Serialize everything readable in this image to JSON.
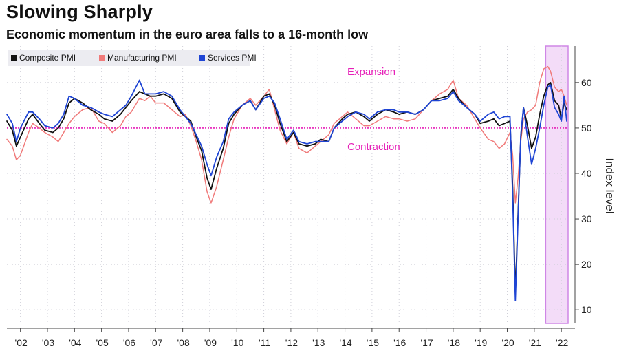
{
  "header": {
    "title": "Slowing Sharply",
    "subtitle": "Economic momentum in the euro area falls to a 16-month low"
  },
  "annotations": {
    "expansion": "Expansion",
    "contraction": "Contraction"
  },
  "colors": {
    "composite": "#111111",
    "manufacturing": "#f07a7a",
    "services": "#1f45d4",
    "threshold": "#e61fb8",
    "highlight_fill": "#f3dcf8",
    "highlight_edge": "#cf86e6",
    "grid": "#cfcfd8"
  },
  "chart_data": {
    "type": "line",
    "ylabel": "Index level",
    "ylim": [
      7,
      68
    ],
    "xlim": [
      2001.5,
      2022.25
    ],
    "yticks": [
      10,
      20,
      30,
      40,
      50,
      60
    ],
    "xticks": [
      "'02",
      "'03",
      "'04",
      "'05",
      "'06",
      "'07",
      "'08",
      "'09",
      "'10",
      "'11",
      "'12",
      "'13",
      "'14",
      "'15",
      "'16",
      "'17",
      "'18",
      "'19",
      "'20",
      "'21",
      "'22"
    ],
    "threshold": 50,
    "highlight_range": [
      2021.42,
      2022.25
    ],
    "grid": true,
    "legend_position": "top-left",
    "series": [
      {
        "name": "Composite PMI",
        "key": "composite",
        "points": [
          [
            2001.5,
            51.5
          ],
          [
            2001.7,
            49.5
          ],
          [
            2001.85,
            46
          ],
          [
            2002.0,
            48
          ],
          [
            2002.3,
            52
          ],
          [
            2002.45,
            53
          ],
          [
            2002.7,
            51
          ],
          [
            2002.9,
            49.5
          ],
          [
            2003.2,
            49
          ],
          [
            2003.4,
            50
          ],
          [
            2003.6,
            52
          ],
          [
            2003.8,
            55.5
          ],
          [
            2004.0,
            56.5
          ],
          [
            2004.3,
            55.5
          ],
          [
            2004.6,
            54
          ],
          [
            2004.9,
            53
          ],
          [
            2005.1,
            52
          ],
          [
            2005.4,
            51.5
          ],
          [
            2005.7,
            53
          ],
          [
            2005.9,
            54.5
          ],
          [
            2006.1,
            56
          ],
          [
            2006.4,
            58
          ],
          [
            2006.6,
            57.5
          ],
          [
            2006.8,
            57
          ],
          [
            2007.0,
            57
          ],
          [
            2007.3,
            57.5
          ],
          [
            2007.6,
            56.5
          ],
          [
            2007.9,
            53.5
          ],
          [
            2008.1,
            52.5
          ],
          [
            2008.3,
            51.5
          ],
          [
            2008.5,
            48
          ],
          [
            2008.7,
            45
          ],
          [
            2008.9,
            39
          ],
          [
            2009.05,
            36.5
          ],
          [
            2009.25,
            41
          ],
          [
            2009.5,
            45.5
          ],
          [
            2009.7,
            51
          ],
          [
            2009.9,
            53
          ],
          [
            2010.2,
            55
          ],
          [
            2010.5,
            56
          ],
          [
            2010.7,
            54
          ],
          [
            2011.0,
            57
          ],
          [
            2011.2,
            57.5
          ],
          [
            2011.4,
            55
          ],
          [
            2011.6,
            51
          ],
          [
            2011.85,
            47
          ],
          [
            2012.1,
            49
          ],
          [
            2012.3,
            46.5
          ],
          [
            2012.6,
            46
          ],
          [
            2012.9,
            46.5
          ],
          [
            2013.1,
            47.5
          ],
          [
            2013.4,
            47
          ],
          [
            2013.6,
            50
          ],
          [
            2013.9,
            52
          ],
          [
            2014.1,
            53
          ],
          [
            2014.4,
            53.5
          ],
          [
            2014.7,
            52.5
          ],
          [
            2014.9,
            51.5
          ],
          [
            2015.2,
            53
          ],
          [
            2015.5,
            54
          ],
          [
            2015.8,
            53.5
          ],
          [
            2016.0,
            53
          ],
          [
            2016.3,
            53.5
          ],
          [
            2016.6,
            53
          ],
          [
            2016.9,
            54
          ],
          [
            2017.2,
            56
          ],
          [
            2017.5,
            56.5
          ],
          [
            2017.8,
            57
          ],
          [
            2018.0,
            58.5
          ],
          [
            2018.2,
            56.5
          ],
          [
            2018.5,
            54.5
          ],
          [
            2018.8,
            53
          ],
          [
            2019.0,
            51
          ],
          [
            2019.3,
            51.5
          ],
          [
            2019.5,
            52
          ],
          [
            2019.7,
            50.5
          ],
          [
            2019.9,
            51
          ],
          [
            2020.1,
            51.5
          ],
          [
            2020.2,
            37
          ],
          [
            2020.3,
            13.6
          ],
          [
            2020.4,
            31
          ],
          [
            2020.5,
            48
          ],
          [
            2020.6,
            54.5
          ],
          [
            2020.75,
            50.5
          ],
          [
            2020.9,
            45.5
          ],
          [
            2021.05,
            48
          ],
          [
            2021.2,
            53
          ],
          [
            2021.35,
            57
          ],
          [
            2021.5,
            59.5
          ],
          [
            2021.6,
            60
          ],
          [
            2021.75,
            56
          ],
          [
            2021.9,
            55
          ],
          [
            2022.0,
            52
          ],
          [
            2022.1,
            55.5
          ],
          [
            2022.2,
            54
          ]
        ]
      },
      {
        "name": "Manufacturing PMI",
        "key": "manufacturing",
        "points": [
          [
            2001.5,
            47.5
          ],
          [
            2001.7,
            46
          ],
          [
            2001.85,
            43
          ],
          [
            2002.0,
            44
          ],
          [
            2002.3,
            49
          ],
          [
            2002.45,
            51
          ],
          [
            2002.7,
            50
          ],
          [
            2002.9,
            49
          ],
          [
            2003.2,
            48
          ],
          [
            2003.4,
            47
          ],
          [
            2003.6,
            49
          ],
          [
            2003.8,
            51
          ],
          [
            2004.0,
            52.5
          ],
          [
            2004.3,
            54
          ],
          [
            2004.6,
            54.5
          ],
          [
            2004.9,
            51.5
          ],
          [
            2005.1,
            51
          ],
          [
            2005.4,
            49
          ],
          [
            2005.7,
            50.5
          ],
          [
            2005.9,
            52.5
          ],
          [
            2006.1,
            53.5
          ],
          [
            2006.4,
            56.5
          ],
          [
            2006.6,
            56
          ],
          [
            2006.8,
            57
          ],
          [
            2007.0,
            55.5
          ],
          [
            2007.3,
            55.5
          ],
          [
            2007.6,
            54
          ],
          [
            2007.9,
            52.5
          ],
          [
            2008.1,
            53
          ],
          [
            2008.3,
            50.5
          ],
          [
            2008.5,
            47
          ],
          [
            2008.7,
            43
          ],
          [
            2008.9,
            36
          ],
          [
            2009.05,
            33.5
          ],
          [
            2009.25,
            37
          ],
          [
            2009.5,
            43
          ],
          [
            2009.7,
            48
          ],
          [
            2009.9,
            52
          ],
          [
            2010.2,
            55
          ],
          [
            2010.5,
            56.5
          ],
          [
            2010.7,
            55
          ],
          [
            2011.0,
            57
          ],
          [
            2011.2,
            58.5
          ],
          [
            2011.4,
            54
          ],
          [
            2011.6,
            49.5
          ],
          [
            2011.85,
            46.5
          ],
          [
            2012.1,
            49
          ],
          [
            2012.3,
            45.5
          ],
          [
            2012.6,
            44.5
          ],
          [
            2012.9,
            46
          ],
          [
            2013.1,
            47
          ],
          [
            2013.4,
            48.5
          ],
          [
            2013.6,
            51
          ],
          [
            2013.9,
            52.5
          ],
          [
            2014.1,
            53.5
          ],
          [
            2014.4,
            52
          ],
          [
            2014.7,
            50.5
          ],
          [
            2014.9,
            50.5
          ],
          [
            2015.2,
            51.5
          ],
          [
            2015.5,
            52.5
          ],
          [
            2015.8,
            52
          ],
          [
            2016.0,
            52
          ],
          [
            2016.3,
            51.5
          ],
          [
            2016.6,
            52
          ],
          [
            2016.9,
            54
          ],
          [
            2017.2,
            56
          ],
          [
            2017.5,
            57.5
          ],
          [
            2017.8,
            58.5
          ],
          [
            2018.0,
            60.5
          ],
          [
            2018.2,
            56.5
          ],
          [
            2018.5,
            55
          ],
          [
            2018.8,
            52
          ],
          [
            2019.0,
            50
          ],
          [
            2019.3,
            47.5
          ],
          [
            2019.5,
            47
          ],
          [
            2019.7,
            45.5
          ],
          [
            2019.9,
            46.5
          ],
          [
            2020.1,
            49
          ],
          [
            2020.2,
            44
          ],
          [
            2020.3,
            33.5
          ],
          [
            2020.4,
            39
          ],
          [
            2020.5,
            47
          ],
          [
            2020.6,
            52
          ],
          [
            2020.75,
            53.5
          ],
          [
            2020.9,
            54
          ],
          [
            2021.05,
            55
          ],
          [
            2021.2,
            60
          ],
          [
            2021.35,
            63
          ],
          [
            2021.5,
            63.5
          ],
          [
            2021.6,
            62.5
          ],
          [
            2021.75,
            59
          ],
          [
            2021.9,
            58
          ],
          [
            2022.0,
            58.5
          ],
          [
            2022.1,
            57
          ],
          [
            2022.2,
            55
          ]
        ]
      },
      {
        "name": "Services PMI",
        "key": "services",
        "points": [
          [
            2001.5,
            53
          ],
          [
            2001.7,
            51
          ],
          [
            2001.85,
            47
          ],
          [
            2002.0,
            50
          ],
          [
            2002.3,
            53.5
          ],
          [
            2002.45,
            53.5
          ],
          [
            2002.7,
            52
          ],
          [
            2002.9,
            50.5
          ],
          [
            2003.2,
            50
          ],
          [
            2003.4,
            51
          ],
          [
            2003.6,
            53
          ],
          [
            2003.8,
            57
          ],
          [
            2004.0,
            56.5
          ],
          [
            2004.3,
            55
          ],
          [
            2004.6,
            54.5
          ],
          [
            2004.9,
            53.5
          ],
          [
            2005.1,
            53
          ],
          [
            2005.4,
            52.5
          ],
          [
            2005.7,
            54
          ],
          [
            2005.9,
            55
          ],
          [
            2006.1,
            57
          ],
          [
            2006.4,
            60.5
          ],
          [
            2006.6,
            57.5
          ],
          [
            2006.8,
            57.5
          ],
          [
            2007.0,
            57.5
          ],
          [
            2007.3,
            58
          ],
          [
            2007.6,
            57
          ],
          [
            2007.9,
            54
          ],
          [
            2008.1,
            52.5
          ],
          [
            2008.3,
            51
          ],
          [
            2008.5,
            48.5
          ],
          [
            2008.7,
            46
          ],
          [
            2008.9,
            42
          ],
          [
            2009.05,
            39.5
          ],
          [
            2009.25,
            43.5
          ],
          [
            2009.5,
            47
          ],
          [
            2009.7,
            52
          ],
          [
            2009.9,
            53.5
          ],
          [
            2010.2,
            55
          ],
          [
            2010.5,
            56
          ],
          [
            2010.7,
            54
          ],
          [
            2011.0,
            56.5
          ],
          [
            2011.2,
            57
          ],
          [
            2011.4,
            55.5
          ],
          [
            2011.6,
            52
          ],
          [
            2011.85,
            47.5
          ],
          [
            2012.1,
            49.5
          ],
          [
            2012.3,
            47
          ],
          [
            2012.6,
            46.5
          ],
          [
            2012.9,
            47
          ],
          [
            2013.1,
            47
          ],
          [
            2013.4,
            47
          ],
          [
            2013.6,
            50
          ],
          [
            2013.9,
            51.5
          ],
          [
            2014.1,
            52.5
          ],
          [
            2014.4,
            53.5
          ],
          [
            2014.7,
            53
          ],
          [
            2014.9,
            52
          ],
          [
            2015.2,
            53.5
          ],
          [
            2015.5,
            54
          ],
          [
            2015.8,
            54
          ],
          [
            2016.0,
            53.5
          ],
          [
            2016.3,
            53.5
          ],
          [
            2016.6,
            53
          ],
          [
            2016.9,
            54
          ],
          [
            2017.2,
            56
          ],
          [
            2017.5,
            56
          ],
          [
            2017.8,
            56.5
          ],
          [
            2018.0,
            58
          ],
          [
            2018.2,
            56
          ],
          [
            2018.5,
            54.5
          ],
          [
            2018.8,
            53
          ],
          [
            2019.0,
            51.5
          ],
          [
            2019.3,
            53
          ],
          [
            2019.5,
            53.5
          ],
          [
            2019.7,
            52
          ],
          [
            2019.9,
            52.5
          ],
          [
            2020.1,
            52.5
          ],
          [
            2020.2,
            35
          ],
          [
            2020.3,
            12
          ],
          [
            2020.4,
            30
          ],
          [
            2020.5,
            48.5
          ],
          [
            2020.6,
            54.5
          ],
          [
            2020.75,
            48
          ],
          [
            2020.9,
            42
          ],
          [
            2021.05,
            45.5
          ],
          [
            2021.2,
            50
          ],
          [
            2021.35,
            55
          ],
          [
            2021.5,
            59
          ],
          [
            2021.6,
            59.5
          ],
          [
            2021.75,
            54.5
          ],
          [
            2021.9,
            53
          ],
          [
            2022.0,
            51.5
          ],
          [
            2022.1,
            57
          ],
          [
            2022.2,
            51.5
          ]
        ]
      }
    ]
  }
}
